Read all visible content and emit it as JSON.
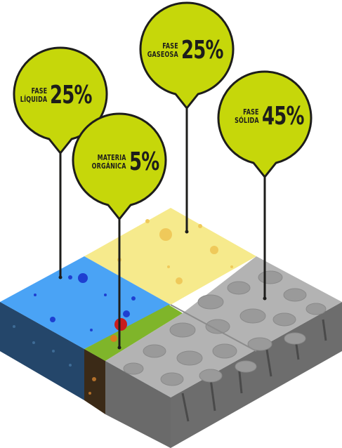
{
  "phases": [
    {
      "id": "liquida",
      "line1": "FASE",
      "line2": "LÍQUIDA",
      "percent": "25%"
    },
    {
      "id": "gaseosa",
      "line1": "FASE",
      "line2": "GASEOSA",
      "percent": "25%"
    },
    {
      "id": "solida",
      "line1": "FASE",
      "line2": "SÓLIDA",
      "percent": "45%"
    },
    {
      "id": "organica",
      "line1": "MATERIA",
      "line2": "ORGÁNICA",
      "percent": "5%"
    }
  ],
  "colors": {
    "bubble": "#c6d70a",
    "outline": "#1d1d1b",
    "water": "#4aa3f5",
    "water_dots": "#1e3fd1",
    "air": "#f6ea8c",
    "air_dots": "#efc95a",
    "solid": "#b3b3b3",
    "solid_dark": "#7d7d7d",
    "organic": "#7fb52a",
    "soil_side": "#1f3a52"
  }
}
